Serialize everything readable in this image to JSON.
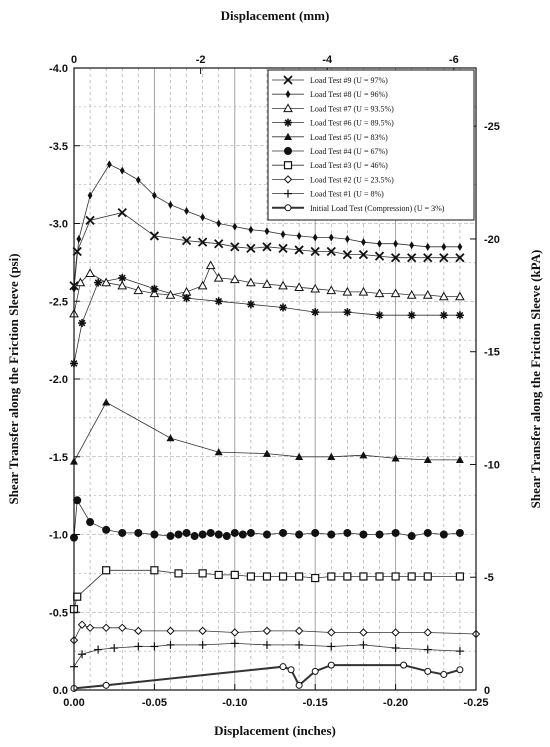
{
  "chart_data": {
    "type": "line",
    "xlabel": "Displacement (inches)",
    "x2label": "Displacement (mm)",
    "ylabel": "Shear Transfer along the Friction Sleeve (psi)",
    "y2label": "Shear Transfer along the Friction Sleeve (kPA)",
    "xlim": [
      0,
      -0.25
    ],
    "ylim": [
      0,
      -4.0
    ],
    "x2lim": [
      0,
      -6.35
    ],
    "y2lim": [
      0,
      -27.58
    ],
    "x_ticks": [
      "0.00",
      "-0.05",
      "-0.10",
      "-0.15",
      "-0.20",
      "-0.25"
    ],
    "y_ticks": [
      "0.0",
      "-0.5",
      "-1.0",
      "-1.5",
      "-2.0",
      "-2.5",
      "-3.0",
      "-3.5",
      "-4.0"
    ],
    "x2_ticks": [
      "0",
      "-2",
      "-4",
      "-6"
    ],
    "y2_ticks": [
      "0",
      "-5",
      "-10",
      "-15",
      "-20",
      "-25"
    ],
    "grid": "dashed vertical and horizontal",
    "legend_position": "top-right",
    "series": [
      {
        "name": "Load Test #9 (U = 97%)",
        "marker": "x",
        "x": [
          0,
          -0.002,
          -0.01,
          -0.03,
          -0.05,
          -0.07,
          -0.08,
          -0.09,
          -0.1,
          -0.11,
          -0.12,
          -0.13,
          -0.14,
          -0.15,
          -0.16,
          -0.17,
          -0.18,
          -0.19,
          -0.2,
          -0.21,
          -0.22,
          -0.23,
          -0.24
        ],
        "y": [
          -2.6,
          -2.82,
          -3.02,
          -3.07,
          -2.92,
          -2.89,
          -2.88,
          -2.87,
          -2.85,
          -2.84,
          -2.85,
          -2.84,
          -2.83,
          -2.82,
          -2.82,
          -2.8,
          -2.8,
          -2.79,
          -2.78,
          -2.78,
          -2.78,
          -2.78,
          -2.78
        ]
      },
      {
        "name": "Load Test #8 (U = 96%)",
        "marker": "diamond-filled",
        "x": [
          0,
          -0.003,
          -0.01,
          -0.022,
          -0.03,
          -0.04,
          -0.05,
          -0.06,
          -0.07,
          -0.08,
          -0.09,
          -0.1,
          -0.11,
          -0.12,
          -0.13,
          -0.14,
          -0.15,
          -0.16,
          -0.17,
          -0.18,
          -0.19,
          -0.2,
          -0.21,
          -0.22,
          -0.23,
          -0.24
        ],
        "y": [
          -2.58,
          -2.9,
          -3.18,
          -3.38,
          -3.34,
          -3.28,
          -3.18,
          -3.12,
          -3.08,
          -3.04,
          -3.0,
          -2.98,
          -2.96,
          -2.95,
          -2.93,
          -2.92,
          -2.91,
          -2.91,
          -2.9,
          -2.88,
          -2.87,
          -2.87,
          -2.86,
          -2.85,
          -2.85,
          -2.85
        ]
      },
      {
        "name": "Load Test #7 (U = 93.5%)",
        "marker": "triangle-open",
        "x": [
          0,
          -0.004,
          -0.01,
          -0.02,
          -0.03,
          -0.04,
          -0.05,
          -0.06,
          -0.07,
          -0.08,
          -0.085,
          -0.09,
          -0.1,
          -0.11,
          -0.12,
          -0.13,
          -0.14,
          -0.15,
          -0.16,
          -0.17,
          -0.18,
          -0.19,
          -0.2,
          -0.21,
          -0.22,
          -0.23,
          -0.24
        ],
        "y": [
          -2.42,
          -2.62,
          -2.68,
          -2.62,
          -2.6,
          -2.57,
          -2.55,
          -2.54,
          -2.56,
          -2.6,
          -2.73,
          -2.65,
          -2.64,
          -2.62,
          -2.61,
          -2.6,
          -2.59,
          -2.58,
          -2.57,
          -2.56,
          -2.56,
          -2.55,
          -2.55,
          -2.54,
          -2.54,
          -2.53,
          -2.53
        ]
      },
      {
        "name": "Load Test #6 (U = 89.5%)",
        "marker": "star",
        "x": [
          0,
          -0.005,
          -0.015,
          -0.03,
          -0.05,
          -0.07,
          -0.09,
          -0.11,
          -0.13,
          -0.15,
          -0.17,
          -0.19,
          -0.21,
          -0.23,
          -0.24
        ],
        "y": [
          -2.1,
          -2.36,
          -2.62,
          -2.65,
          -2.58,
          -2.52,
          -2.5,
          -2.48,
          -2.46,
          -2.43,
          -2.43,
          -2.41,
          -2.41,
          -2.41,
          -2.41
        ]
      },
      {
        "name": "Load Test #5 (U = 83%)",
        "marker": "triangle-filled",
        "x": [
          0,
          -0.02,
          -0.06,
          -0.09,
          -0.12,
          -0.14,
          -0.16,
          -0.18,
          -0.2,
          -0.22,
          -0.24
        ],
        "y": [
          -1.47,
          -1.85,
          -1.62,
          -1.53,
          -1.52,
          -1.5,
          -1.5,
          -1.51,
          -1.49,
          -1.48,
          -1.48
        ]
      },
      {
        "name": "Load Test #4 (U = 67%)",
        "marker": "circle-filled",
        "x": [
          0,
          -0.002,
          -0.01,
          -0.02,
          -0.03,
          -0.04,
          -0.05,
          -0.06,
          -0.065,
          -0.07,
          -0.075,
          -0.08,
          -0.085,
          -0.09,
          -0.095,
          -0.1,
          -0.105,
          -0.11,
          -0.12,
          -0.13,
          -0.14,
          -0.15,
          -0.16,
          -0.17,
          -0.18,
          -0.19,
          -0.2,
          -0.21,
          -0.22,
          -0.23,
          -0.24
        ],
        "y": [
          -0.98,
          -1.22,
          -1.08,
          -1.03,
          -1.01,
          -1.01,
          -1.0,
          -0.99,
          -1.0,
          -1.01,
          -0.99,
          -1.0,
          -1.01,
          -1.0,
          -0.99,
          -1.01,
          -1.0,
          -1.01,
          -1.0,
          -1.01,
          -1.0,
          -1.01,
          -1.0,
          -1.01,
          -1.0,
          -1.0,
          -1.01,
          -0.99,
          -1.01,
          -1.0,
          -1.01
        ]
      },
      {
        "name": "Load Test #3 (U = 46%)",
        "marker": "square-open",
        "x": [
          0,
          -0.002,
          -0.02,
          -0.05,
          -0.065,
          -0.08,
          -0.09,
          -0.1,
          -0.11,
          -0.12,
          -0.13,
          -0.14,
          -0.15,
          -0.16,
          -0.17,
          -0.18,
          -0.19,
          -0.2,
          -0.21,
          -0.22,
          -0.24
        ],
        "y": [
          -0.52,
          -0.6,
          -0.77,
          -0.77,
          -0.75,
          -0.75,
          -0.74,
          -0.74,
          -0.73,
          -0.73,
          -0.73,
          -0.73,
          -0.72,
          -0.73,
          -0.73,
          -0.73,
          -0.73,
          -0.73,
          -0.73,
          -0.73,
          -0.73
        ]
      },
      {
        "name": "Load Test #2 (U = 23.5%)",
        "marker": "diamond-open",
        "x": [
          0,
          -0.005,
          -0.01,
          -0.02,
          -0.03,
          -0.04,
          -0.06,
          -0.08,
          -0.1,
          -0.12,
          -0.14,
          -0.16,
          -0.18,
          -0.2,
          -0.22,
          -0.25
        ],
        "y": [
          -0.32,
          -0.42,
          -0.4,
          -0.4,
          -0.4,
          -0.38,
          -0.38,
          -0.38,
          -0.37,
          -0.38,
          -0.38,
          -0.37,
          -0.37,
          -0.37,
          -0.37,
          -0.36
        ]
      },
      {
        "name": "Load Test #1 (U = 8%)",
        "marker": "plus",
        "x": [
          0,
          -0.005,
          -0.015,
          -0.025,
          -0.04,
          -0.05,
          -0.06,
          -0.08,
          -0.1,
          -0.12,
          -0.14,
          -0.16,
          -0.18,
          -0.2,
          -0.22,
          -0.24
        ],
        "y": [
          -0.15,
          -0.23,
          -0.26,
          -0.27,
          -0.28,
          -0.28,
          -0.29,
          -0.29,
          -0.3,
          -0.29,
          -0.29,
          -0.28,
          -0.29,
          -0.27,
          -0.26,
          -0.25
        ]
      },
      {
        "name": "Initial Load Test (Compression) (U = 3%)",
        "marker": "small-open-circle",
        "x": [
          0,
          -0.02,
          -0.13,
          -0.135,
          -0.14,
          -0.15,
          -0.16,
          -0.205,
          -0.22,
          -0.23,
          -0.24
        ],
        "y": [
          -0.01,
          -0.03,
          -0.15,
          -0.13,
          -0.03,
          -0.12,
          -0.16,
          -0.16,
          -0.12,
          -0.1,
          -0.13
        ]
      }
    ]
  }
}
